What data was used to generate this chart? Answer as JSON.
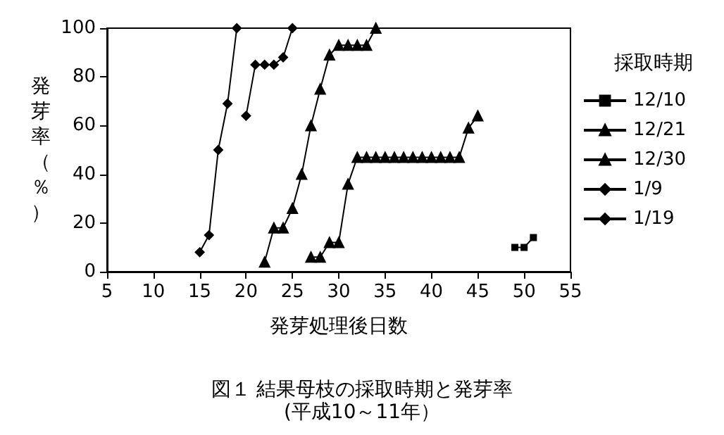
{
  "chart_data": {
    "type": "line",
    "title": "図１ 結果母枝の採取時期と発芽率",
    "subtitle": "(平成10～11年）",
    "xlabel": "発芽処理後日数",
    "ylabel": "発芽率（％）",
    "legend_title": "採取時期",
    "xlim": [
      5,
      55
    ],
    "xticks": [
      5,
      10,
      15,
      20,
      25,
      30,
      35,
      40,
      45,
      50,
      55
    ],
    "ylim": [
      0,
      100
    ],
    "yticks": [
      0,
      20,
      40,
      60,
      80,
      100
    ],
    "grid": false,
    "legend": "right",
    "line_style": "solid",
    "series": [
      {
        "name": "12/10",
        "color": "#000000",
        "marker": "square",
        "x": [
          49,
          50,
          51
        ],
        "values": [
          10,
          10,
          14
        ]
      },
      {
        "name": "12/21",
        "color": "#000000",
        "marker": "triangle",
        "x": [
          27,
          28,
          29,
          30,
          31,
          32,
          33,
          34,
          35,
          36,
          37,
          38,
          39,
          40,
          41,
          42,
          43,
          44,
          45
        ],
        "values": [
          6,
          6,
          12,
          12,
          36,
          47,
          47,
          47,
          47,
          47,
          47,
          47,
          47,
          47,
          47,
          47,
          47,
          59,
          64
        ]
      },
      {
        "name": "12/30",
        "color": "#000000",
        "marker": "triangle",
        "x": [
          22,
          23,
          24,
          25,
          26,
          27,
          28,
          29,
          30,
          31,
          32,
          33,
          34
        ],
        "values": [
          4,
          18,
          18,
          26,
          40,
          60,
          75,
          89,
          93,
          93,
          93,
          93,
          100
        ]
      },
      {
        "name": "1/9",
        "color": "#000000",
        "marker": "diamond",
        "x": [
          20,
          21,
          22,
          23,
          24,
          25
        ],
        "values": [
          64,
          85,
          85,
          85,
          88,
          100
        ]
      },
      {
        "name": "1/19",
        "color": "#000000",
        "marker": "diamond",
        "x": [
          15,
          16,
          17,
          18,
          19
        ],
        "values": [
          8,
          15,
          50,
          69,
          100
        ]
      }
    ]
  }
}
